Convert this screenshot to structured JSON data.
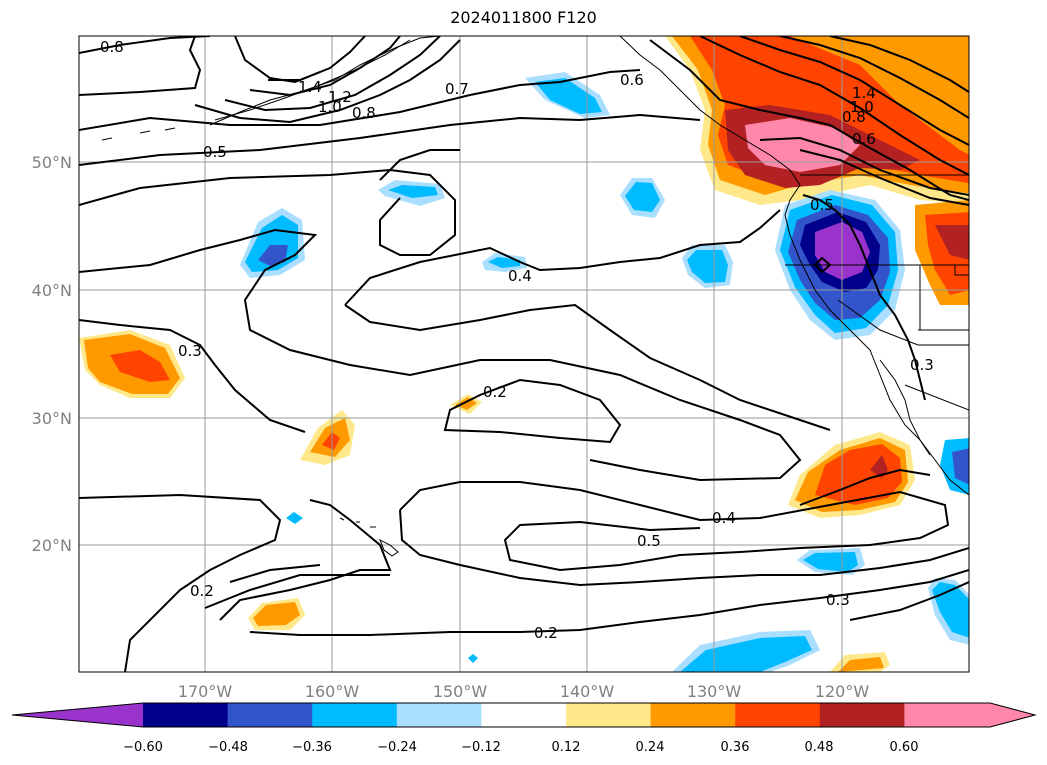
{
  "title": "2024011800 F120",
  "map": {
    "lat_labels": [
      "50°N",
      "40°N",
      "30°N",
      "20°N"
    ],
    "lon_labels": [
      "170°W",
      "160°W",
      "150°W",
      "140°W",
      "130°W",
      "120°W"
    ],
    "grid": true,
    "contour_labels": [
      "0.8",
      "1.4",
      "1.2",
      "1.0",
      "0.8",
      "0.7",
      "0.6",
      "0.5",
      "0.4",
      "0.3",
      "0.2",
      "0.4",
      "0.5",
      "0.3",
      "0.2",
      "0.2",
      "1.4",
      "1.0",
      "0.8",
      "0.6",
      "0.5",
      "0.3"
    ]
  },
  "colorbar": {
    "ticks": [
      "−0.60",
      "−0.48",
      "−0.36",
      "−0.24",
      "−0.12",
      "0.12",
      "0.24",
      "0.36",
      "0.48",
      "0.60"
    ],
    "colors": [
      "#9933cc",
      "#00008b",
      "#3355cc",
      "#00bbff",
      "#aadeff",
      "#ffffff",
      "#ffe88a",
      "#ff9900",
      "#ff4400",
      "#b22222",
      "#ff88aa"
    ],
    "extend": "both"
  }
}
